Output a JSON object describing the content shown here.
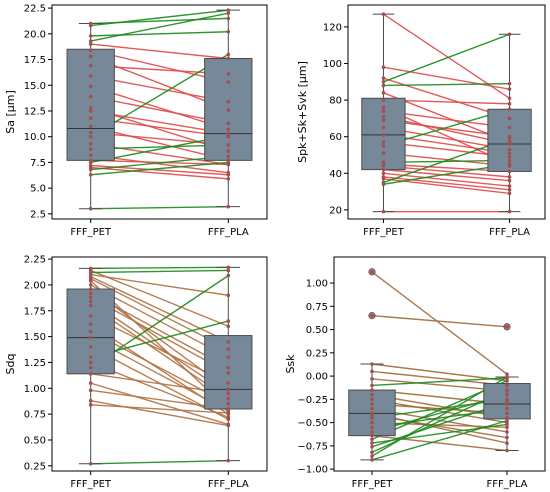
{
  "figure": {
    "colors": {
      "box_fill": "#778899",
      "box_edge": "#4a4a4a",
      "increase_line": "#1a8a1a",
      "decrease_line": "#e04848",
      "mixed_line": "#a06a3a",
      "decrease_line_sdq": "#b07040",
      "marker": "#a05050"
    }
  },
  "chart_data": [
    {
      "id": "sa",
      "type": "box_paired",
      "title": "",
      "xlabel": "",
      "ylabel": "Sa [µm]",
      "categories": [
        "FFF_PET",
        "FFF_PLA"
      ],
      "ylim": [
        2.0,
        22.8
      ],
      "yticks": [
        2.5,
        5.0,
        7.5,
        10.0,
        12.5,
        15.0,
        17.5,
        20.0,
        22.5
      ],
      "ytick_labels": [
        "2.5",
        "5.0",
        "7.5",
        "10.0",
        "12.5",
        "15.0",
        "17.5",
        "20.0",
        "22.5"
      ],
      "boxes": [
        {
          "whisker_low": 3.0,
          "q1": 7.7,
          "median": 10.8,
          "q3": 18.5,
          "whisker_high": 21.0,
          "outliers": []
        },
        {
          "whisker_low": 3.2,
          "q1": 7.7,
          "median": 10.3,
          "q3": 17.6,
          "whisker_high": 22.3,
          "outliers": []
        }
      ],
      "pairs": [
        [
          21.0,
          21.5
        ],
        [
          20.8,
          22.3
        ],
        [
          19.8,
          20.2
        ],
        [
          19.3,
          22.0
        ],
        [
          19.0,
          17.6
        ],
        [
          18.4,
          15.3
        ],
        [
          17.8,
          12.6
        ],
        [
          16.9,
          16.1
        ],
        [
          15.9,
          13.4
        ],
        [
          14.9,
          10.7
        ],
        [
          13.9,
          11.3
        ],
        [
          12.8,
          8.6
        ],
        [
          12.5,
          10.3
        ],
        [
          11.8,
          10.0
        ],
        [
          11.0,
          7.7
        ],
        [
          10.4,
          9.2
        ],
        [
          10.0,
          18.0
        ],
        [
          9.3,
          7.3
        ],
        [
          8.8,
          9.2
        ],
        [
          8.2,
          6.5
        ],
        [
          7.7,
          7.3
        ],
        [
          7.5,
          10.1
        ],
        [
          7.2,
          6.3
        ],
        [
          7.0,
          5.9
        ],
        [
          6.8,
          8.1
        ],
        [
          6.3,
          7.5
        ],
        [
          3.0,
          3.2
        ]
      ]
    },
    {
      "id": "spk",
      "type": "box_paired",
      "title": "",
      "xlabel": "",
      "ylabel": "Spk+Sk+Svk [µm]",
      "categories": [
        "FFF_PET",
        "FFF_PLA"
      ],
      "ylim": [
        15,
        132
      ],
      "yticks": [
        20,
        40,
        60,
        80,
        100,
        120
      ],
      "ytick_labels": [
        "20",
        "40",
        "60",
        "80",
        "100",
        "120"
      ],
      "boxes": [
        {
          "whisker_low": 19.0,
          "q1": 42.0,
          "median": 61.0,
          "q3": 81.0,
          "whisker_high": 127.0,
          "outliers": []
        },
        {
          "whisker_low": 19.0,
          "q1": 41.0,
          "median": 56.0,
          "q3": 75.0,
          "whisker_high": 116.0,
          "outliers": []
        }
      ],
      "pairs": [
        [
          127.0,
          81.0
        ],
        [
          98.0,
          86.0
        ],
        [
          92.0,
          70.0
        ],
        [
          90.0,
          116.0
        ],
        [
          88.0,
          89.0
        ],
        [
          84.0,
          57.0
        ],
        [
          80.0,
          78.0
        ],
        [
          76.0,
          45.0
        ],
        [
          74.0,
          65.0
        ],
        [
          71.0,
          56.0
        ],
        [
          69.0,
          60.0
        ],
        [
          65.0,
          53.0
        ],
        [
          61.0,
          51.0
        ],
        [
          57.0,
          49.0
        ],
        [
          55.0,
          75.0
        ],
        [
          51.0,
          44.0
        ],
        [
          46.0,
          47.0
        ],
        [
          45.0,
          41.0
        ],
        [
          44.0,
          38.0
        ],
        [
          42.0,
          36.0
        ],
        [
          40.0,
          33.0
        ],
        [
          38.0,
          31.0
        ],
        [
          37.0,
          29.0
        ],
        [
          35.0,
          59.0
        ],
        [
          34.0,
          45.0
        ],
        [
          19.0,
          19.0
        ]
      ]
    },
    {
      "id": "sdq",
      "type": "box_paired",
      "title": "",
      "xlabel": "",
      "ylabel": "Sdq",
      "categories": [
        "FFF_PET",
        "FFF_PLA"
      ],
      "ylim": [
        0.2,
        2.27
      ],
      "yticks": [
        0.25,
        0.5,
        0.75,
        1.0,
        1.25,
        1.5,
        1.75,
        2.0,
        2.25
      ],
      "ytick_labels": [
        "0.25",
        "0.50",
        "0.75",
        "1.00",
        "1.25",
        "1.50",
        "1.75",
        "2.00",
        "2.25"
      ],
      "boxes": [
        {
          "whisker_low": 0.27,
          "q1": 1.14,
          "median": 1.49,
          "q3": 1.96,
          "whisker_high": 2.16,
          "outliers": []
        },
        {
          "whisker_low": 0.3,
          "q1": 0.8,
          "median": 0.99,
          "q3": 1.51,
          "whisker_high": 2.17,
          "outliers": []
        }
      ],
      "pairs": [
        [
          2.16,
          2.17
        ],
        [
          2.14,
          1.6
        ],
        [
          2.12,
          2.14
        ],
        [
          2.1,
          1.9
        ],
        [
          2.08,
          1.45
        ],
        [
          2.06,
          1.38
        ],
        [
          2.04,
          0.8
        ],
        [
          2.0,
          1.3
        ],
        [
          1.96,
          0.99
        ],
        [
          1.92,
          1.2
        ],
        [
          1.88,
          1.15
        ],
        [
          1.84,
          0.95
        ],
        [
          1.8,
          0.9
        ],
        [
          1.7,
          1.05
        ],
        [
          1.62,
          0.75
        ],
        [
          1.55,
          0.85
        ],
        [
          1.49,
          0.78
        ],
        [
          1.4,
          0.7
        ],
        [
          1.3,
          1.65
        ],
        [
          1.25,
          0.72
        ],
        [
          1.2,
          2.09
        ],
        [
          1.14,
          0.95
        ],
        [
          1.05,
          0.65
        ],
        [
          0.98,
          0.8
        ],
        [
          0.88,
          0.64
        ],
        [
          0.84,
          0.76
        ],
        [
          0.27,
          0.3
        ]
      ]
    },
    {
      "id": "ssk",
      "type": "box_paired",
      "title": "",
      "xlabel": "",
      "ylabel": "Ssk",
      "categories": [
        "FFF_PET",
        "FFF_PLA"
      ],
      "ylim": [
        -1.02,
        1.28
      ],
      "yticks": [
        -1.0,
        -0.75,
        -0.5,
        -0.25,
        0.0,
        0.25,
        0.5,
        0.75,
        1.0
      ],
      "ytick_labels": [
        "−1.00",
        "−0.75",
        "−0.50",
        "−0.25",
        "0.00",
        "0.25",
        "0.50",
        "0.75",
        "1.00"
      ],
      "boxes": [
        {
          "whisker_low": -0.9,
          "q1": -0.64,
          "median": -0.4,
          "q3": -0.15,
          "whisker_high": 0.13,
          "outliers": [
            0.65,
            1.12
          ]
        },
        {
          "whisker_low": -0.8,
          "q1": -0.46,
          "median": -0.3,
          "q3": -0.08,
          "whisker_high": -0.01,
          "outliers": [
            0.53
          ]
        }
      ],
      "pairs": [
        [
          1.12,
          0.02
        ],
        [
          0.65,
          0.53
        ],
        [
          0.13,
          -0.05
        ],
        [
          0.05,
          -0.1
        ],
        [
          -0.03,
          -0.16
        ],
        [
          -0.1,
          -0.02
        ],
        [
          -0.15,
          -0.3
        ],
        [
          -0.2,
          -0.45
        ],
        [
          -0.25,
          -0.5
        ],
        [
          -0.3,
          -0.4
        ],
        [
          -0.35,
          -0.6
        ],
        [
          -0.4,
          -0.72
        ],
        [
          -0.42,
          -0.66
        ],
        [
          -0.45,
          -0.25
        ],
        [
          -0.5,
          -0.55
        ],
        [
          -0.55,
          -0.35
        ],
        [
          -0.6,
          -0.2
        ],
        [
          -0.64,
          -0.8
        ],
        [
          -0.68,
          -0.05
        ],
        [
          -0.72,
          -0.52
        ],
        [
          -0.76,
          -0.28
        ],
        [
          -0.82,
          -0.15
        ],
        [
          -0.86,
          -0.01
        ],
        [
          -0.9,
          -0.48
        ]
      ]
    }
  ]
}
